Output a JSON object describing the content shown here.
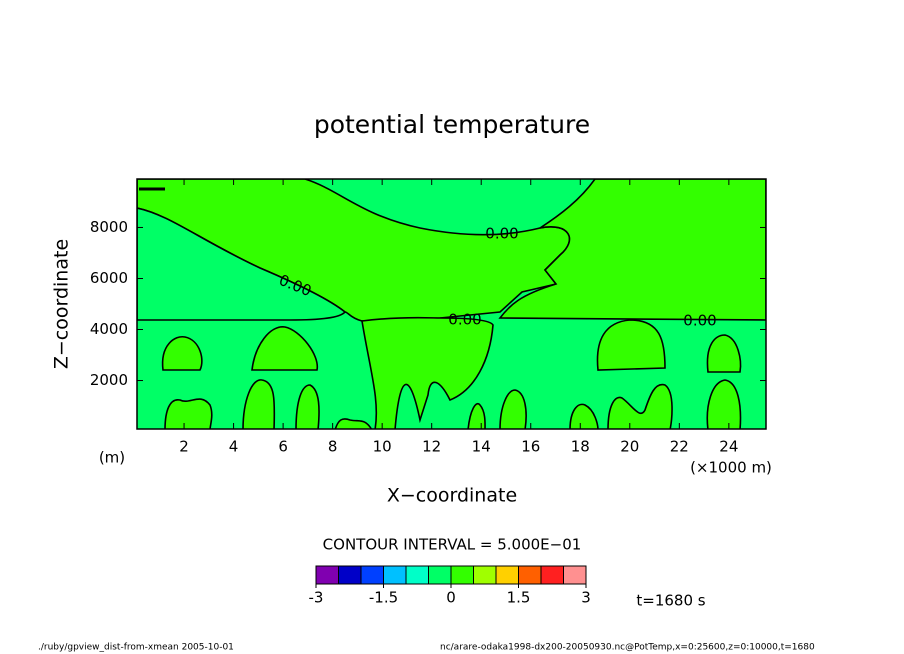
{
  "chart_data": {
    "type": "contour",
    "title": "potential temperature",
    "x_label": "X−coordinate",
    "y_label": "Z−coordinate",
    "x_unit": "(×1000 m)",
    "y_unit": "(m)",
    "xlim": [
      0.1,
      25.5
    ],
    "ylim": [
      100,
      9900
    ],
    "xticks": [
      2,
      4,
      6,
      8,
      10,
      12,
      14,
      16,
      18,
      20,
      22,
      24
    ],
    "yticks": [
      2000,
      4000,
      6000,
      8000
    ],
    "contour_labels": [
      "0.00",
      "0.00",
      "0.00",
      "0.00"
    ],
    "contour_interval": "CONTOUR INTERVAL = 5.000E−01",
    "time_label": "t=1680 s",
    "colorbar": {
      "levels": [
        -3,
        -2.5,
        -2,
        -1.5,
        -1,
        -0.5,
        0,
        0.5,
        1,
        1.5,
        2,
        2.5,
        3
      ],
      "colors": [
        "#8000b0",
        "#0000c8",
        "#0040ff",
        "#00c0ff",
        "#00ffc8",
        "#00ff66",
        "#33ff00",
        "#a0ff00",
        "#ffd000",
        "#ff6000",
        "#ff2020",
        "#ff9090"
      ],
      "ticks": [
        -3,
        -1.5,
        0,
        1.5,
        3
      ]
    },
    "footer_left": "./ruby/gpview_dist-from-xmean  2005-10-01",
    "footer_right": "nc/arare-odaka1998-dx200-20050930.nc@PotTemp,x=0:25600,z=0:10000,t=1680"
  }
}
